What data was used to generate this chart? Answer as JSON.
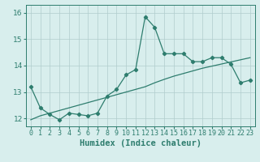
{
  "xlabel": "Humidex (Indice chaleur)",
  "xlim": [
    -0.5,
    23.5
  ],
  "ylim": [
    11.7,
    16.3
  ],
  "yticks": [
    12,
    13,
    14,
    15,
    16
  ],
  "xticks": [
    0,
    1,
    2,
    3,
    4,
    5,
    6,
    7,
    8,
    9,
    10,
    11,
    12,
    13,
    14,
    15,
    16,
    17,
    18,
    19,
    20,
    21,
    22,
    23
  ],
  "line1_x": [
    0,
    1,
    2,
    3,
    4,
    5,
    6,
    7,
    8,
    9,
    10,
    11,
    12,
    13,
    14,
    15,
    16,
    17,
    18,
    19,
    20,
    21,
    22,
    23
  ],
  "line1_y": [
    13.2,
    12.4,
    12.15,
    11.95,
    12.2,
    12.15,
    12.1,
    12.2,
    12.85,
    13.1,
    13.65,
    13.85,
    15.85,
    15.45,
    14.45,
    14.45,
    14.45,
    14.15,
    14.15,
    14.3,
    14.3,
    14.05,
    13.35,
    13.45
  ],
  "line2_x": [
    0,
    1,
    2,
    3,
    4,
    5,
    6,
    7,
    8,
    9,
    10,
    11,
    12,
    13,
    14,
    15,
    16,
    17,
    18,
    19,
    20,
    21,
    22,
    23
  ],
  "line2_y": [
    11.95,
    12.1,
    12.2,
    12.3,
    12.4,
    12.5,
    12.6,
    12.7,
    12.8,
    12.9,
    13.0,
    13.1,
    13.2,
    13.35,
    13.48,
    13.6,
    13.7,
    13.8,
    13.9,
    13.98,
    14.06,
    14.14,
    14.22,
    14.3
  ],
  "line_color": "#2e7d6e",
  "bg_color": "#d8eeed",
  "grid_color": "#b0cccc",
  "axis_fontsize": 7,
  "tick_fontsize": 6,
  "xlabel_fontsize": 7.5
}
